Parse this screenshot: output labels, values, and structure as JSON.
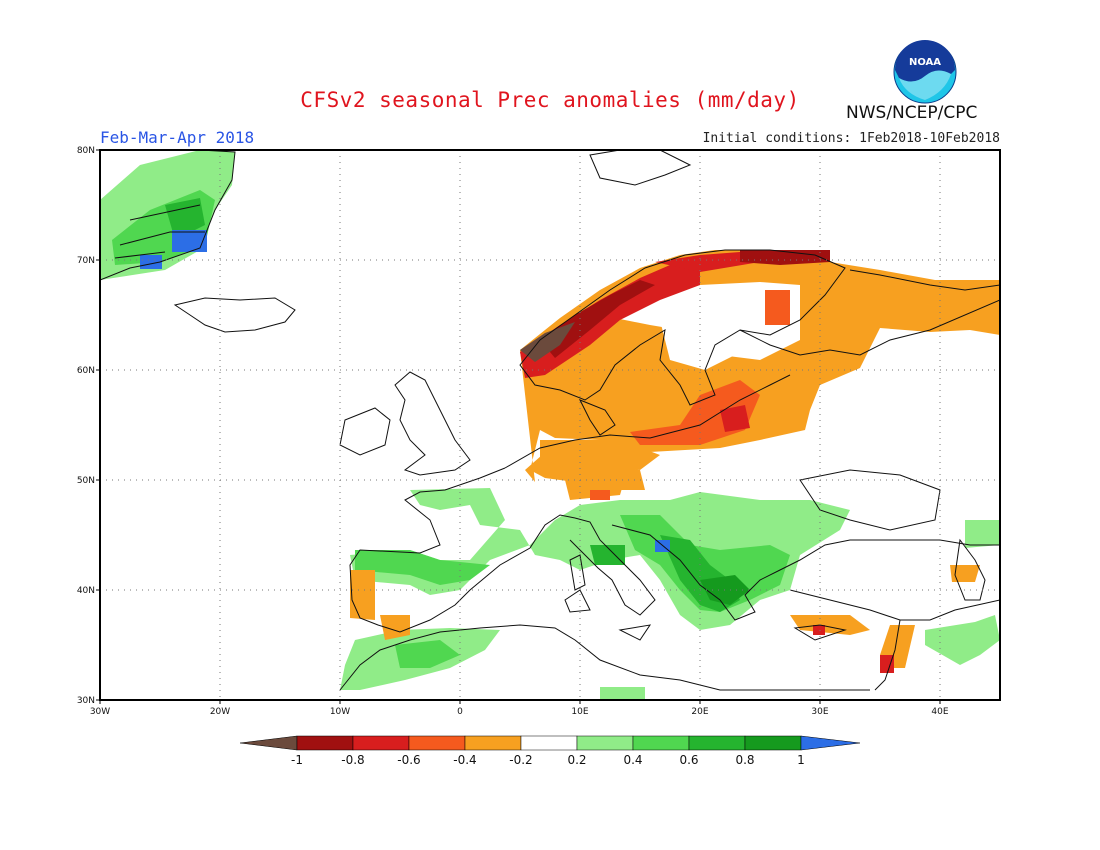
{
  "header": {
    "title": "CFSv2 seasonal Prec anomalies (mm/day)",
    "period": "Feb-Mar-Apr 2018",
    "initial_conditions": "Initial conditions: 1Feb2018-10Feb2018",
    "organization": "NWS/NCEP/CPC",
    "logo_text": "NOAA"
  },
  "map": {
    "lon_range": [
      -30,
      45
    ],
    "lat_range": [
      30,
      80
    ],
    "lon_ticks": [
      "30W",
      "20W",
      "10W",
      "0",
      "10E",
      "20E",
      "30E",
      "40E"
    ],
    "lat_ticks": [
      "30N",
      "40N",
      "50N",
      "60N",
      "70N",
      "80N"
    ],
    "grid": "dotted"
  },
  "colorbar": {
    "labels": [
      "-1",
      "-0.8",
      "-0.6",
      "-0.4",
      "-0.2",
      "0.2",
      "0.4",
      "0.6",
      "0.8",
      "1"
    ],
    "colors": {
      "lt-1": "#6b4a3c",
      "-1--0.8": "#a01010",
      "-0.8--0.6": "#d81e1e",
      "-0.6--0.4": "#f55a1e",
      "-0.4--0.2": "#f7a020",
      "-0.2-0.2": "#ffffff",
      "0.2-0.4": "#90ec88",
      "0.4-0.6": "#50d750",
      "0.6-0.8": "#25b42f",
      "0.8-1": "#159a1e",
      "gt-1": "#2c6ee6"
    }
  }
}
